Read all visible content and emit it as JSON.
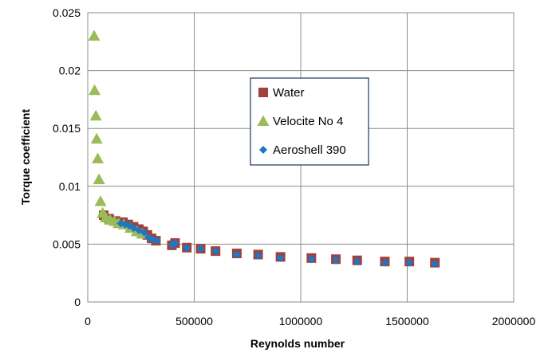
{
  "chart_data": {
    "type": "scatter",
    "title": "",
    "xlabel": "Reynolds number",
    "ylabel": "Torque coefficient",
    "xlim": [
      0,
      2000000
    ],
    "ylim": [
      0,
      0.025
    ],
    "x_ticks": [
      0,
      500000,
      1000000,
      1500000,
      2000000
    ],
    "x_tick_labels": [
      "0",
      "500000",
      "1000000",
      "1500000",
      "2000000"
    ],
    "y_ticks": [
      0,
      0.005,
      0.01,
      0.015,
      0.02,
      0.025
    ],
    "y_tick_labels": [
      "0",
      "0.005",
      "0.01",
      "0.015",
      "0.02",
      "0.025"
    ],
    "grid": true,
    "legend_position": "center",
    "series": [
      {
        "name": "Water",
        "marker": "square",
        "color": "#a0413b",
        "points": [
          [
            75000,
            0.0075
          ],
          [
            100000,
            0.0072
          ],
          [
            130000,
            0.007
          ],
          [
            165000,
            0.0069
          ],
          [
            190000,
            0.0067
          ],
          [
            215000,
            0.0065
          ],
          [
            240000,
            0.0063
          ],
          [
            260000,
            0.0061
          ],
          [
            280000,
            0.0058
          ],
          [
            300000,
            0.0055
          ],
          [
            320000,
            0.0053
          ],
          [
            395000,
            0.0049
          ],
          [
            410000,
            0.0051
          ],
          [
            465000,
            0.0047
          ],
          [
            530000,
            0.0046
          ],
          [
            600000,
            0.0044
          ],
          [
            700000,
            0.0042
          ],
          [
            800000,
            0.0041
          ],
          [
            905000,
            0.0039
          ],
          [
            1050000,
            0.0038
          ],
          [
            1165000,
            0.0037
          ],
          [
            1265000,
            0.0036
          ],
          [
            1395000,
            0.0035
          ],
          [
            1510000,
            0.0035
          ],
          [
            1630000,
            0.0034
          ]
        ]
      },
      {
        "name": "Velocite No 4",
        "marker": "triangle",
        "color": "#9bbb59",
        "points": [
          [
            30000,
            0.023
          ],
          [
            32000,
            0.0183
          ],
          [
            38000,
            0.0161
          ],
          [
            42000,
            0.0141
          ],
          [
            47000,
            0.0124
          ],
          [
            53000,
            0.0106
          ],
          [
            60000,
            0.0087
          ],
          [
            70000,
            0.0077
          ],
          [
            85000,
            0.0073
          ],
          [
            105000,
            0.0071
          ],
          [
            125000,
            0.007
          ],
          [
            145000,
            0.0068
          ],
          [
            170000,
            0.0067
          ],
          [
            200000,
            0.0064
          ],
          [
            230000,
            0.0061
          ],
          [
            255000,
            0.0059
          ]
        ]
      },
      {
        "name": "Aeroshell 390",
        "marker": "diamond",
        "color": "#1f77c4",
        "points": [
          [
            155000,
            0.0068
          ],
          [
            175000,
            0.0067
          ],
          [
            195000,
            0.0066
          ],
          [
            215000,
            0.0064
          ],
          [
            240000,
            0.0062
          ],
          [
            265000,
            0.006
          ],
          [
            285000,
            0.0056
          ],
          [
            305000,
            0.0054
          ],
          [
            325000,
            0.0053
          ],
          [
            395000,
            0.0049
          ],
          [
            410000,
            0.0051
          ],
          [
            465000,
            0.0047
          ],
          [
            530000,
            0.0046
          ],
          [
            600000,
            0.0044
          ],
          [
            700000,
            0.0041
          ],
          [
            800000,
            0.004
          ],
          [
            905000,
            0.0038
          ],
          [
            1050000,
            0.0037
          ],
          [
            1165000,
            0.0036
          ],
          [
            1265000,
            0.0035
          ],
          [
            1395000,
            0.0034
          ],
          [
            1510000,
            0.0034
          ],
          [
            1630000,
            0.0033
          ]
        ]
      }
    ]
  }
}
